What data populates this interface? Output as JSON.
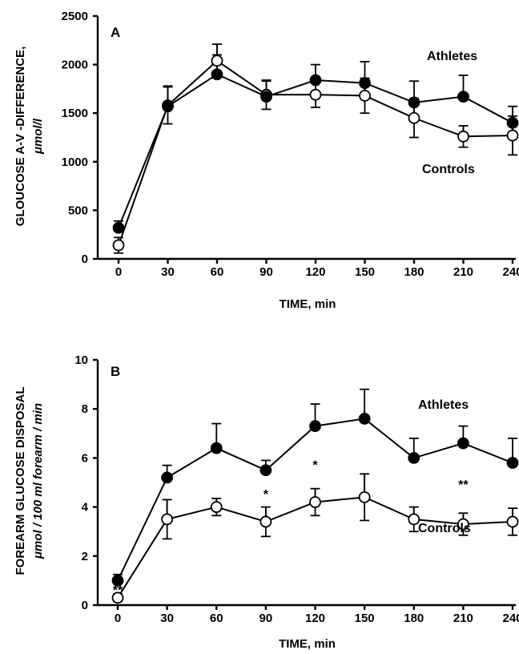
{
  "chart_data": [
    {
      "type": "line",
      "panel_label": "A",
      "xlabel": "TIME, min",
      "ylabel": "GLOUCOSE A-V -DIFFERENCE,",
      "ylabel2": "μmol/l",
      "ylim": [
        0,
        2500
      ],
      "x": [
        0,
        30,
        60,
        90,
        120,
        150,
        180,
        210,
        240
      ],
      "xticks": [
        "0",
        "30",
        "60",
        "90",
        "120",
        "150",
        "180",
        "210",
        "240"
      ],
      "yticks": [
        "0",
        "500",
        "1000",
        "1500",
        "2000",
        "2500"
      ],
      "series": [
        {
          "name": "Athletes",
          "marker": "filled-circle",
          "values": [
            320,
            1570,
            1900,
            1670,
            1840,
            1810,
            1610,
            1670,
            1400
          ],
          "errors": [
            70,
            210,
            200,
            160,
            160,
            220,
            220,
            220,
            170
          ]
        },
        {
          "name": "Controls",
          "marker": "open-circle",
          "values": [
            140,
            1580,
            2040,
            1690,
            1690,
            1680,
            1450,
            1260,
            1270
          ],
          "errors": [
            80,
            190,
            170,
            150,
            130,
            180,
            200,
            110,
            200
          ]
        }
      ],
      "annotations": []
    },
    {
      "type": "line",
      "panel_label": "B",
      "xlabel": "TIME, min",
      "ylabel": "FOREARM GLUCOSE DISPOSAL",
      "ylabel2": "μmol / 100 ml forearm / min",
      "ylim": [
        0,
        10
      ],
      "x": [
        0,
        30,
        60,
        90,
        120,
        150,
        180,
        210,
        240
      ],
      "xticks": [
        "0",
        "30",
        "60",
        "90",
        "120",
        "150",
        "180",
        "210",
        "240"
      ],
      "yticks": [
        "0",
        "2",
        "4",
        "6",
        "8",
        "10"
      ],
      "series": [
        {
          "name": "Athletes",
          "marker": "filled-circle",
          "values": [
            1.0,
            5.2,
            6.4,
            5.5,
            7.3,
            7.6,
            6.0,
            6.6,
            5.8
          ],
          "errors": [
            0.25,
            0.5,
            1.0,
            0.4,
            0.9,
            1.2,
            0.8,
            0.7,
            1.0
          ]
        },
        {
          "name": "Controls",
          "marker": "open-circle",
          "values": [
            0.3,
            3.5,
            4.0,
            3.4,
            4.2,
            4.4,
            3.5,
            3.3,
            3.4
          ],
          "errors": [
            0.15,
            0.8,
            0.35,
            0.6,
            0.55,
            0.95,
            0.5,
            0.45,
            0.55
          ]
        }
      ],
      "annotations": [
        {
          "text": "**",
          "x": 0,
          "y": 0.7
        },
        {
          "text": "*",
          "x": 90,
          "y": 4.6
        },
        {
          "text": "*",
          "x": 120,
          "y": 5.8
        },
        {
          "text": "**",
          "x": 210,
          "y": 5.0
        }
      ]
    }
  ]
}
